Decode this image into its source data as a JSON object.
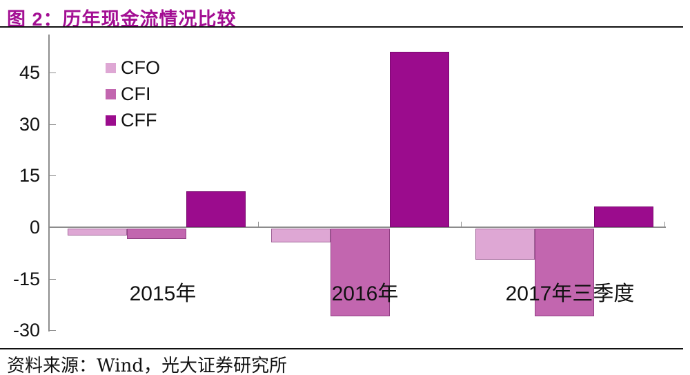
{
  "header": {
    "title": "图 2：历年现金流情况比较"
  },
  "footer": {
    "source": "资料来源：Wind，光大证券研究所"
  },
  "chart_data": {
    "type": "bar",
    "title": "历年现金流情况比较",
    "categories": [
      "2015年",
      "2016年",
      "2017年三季度"
    ],
    "series": [
      {
        "name": "CFO",
        "color": "#DEA7D4",
        "values": [
          -2,
          -4,
          -9
        ]
      },
      {
        "name": "CFI",
        "color": "#C266AF",
        "values": [
          -3,
          -25.5,
          -25.5
        ]
      },
      {
        "name": "CFF",
        "color": "#9B0C8D",
        "values": [
          10.5,
          51,
          6
        ]
      }
    ],
    "xlabel": "",
    "ylabel": "",
    "yticks": [
      45,
      30,
      15,
      0,
      -15,
      -30
    ],
    "ylim": [
      -30,
      55
    ],
    "grid": false,
    "legend_position": "top-left",
    "axis_color": "#8C8C8C",
    "title_color": "#A30F93"
  }
}
